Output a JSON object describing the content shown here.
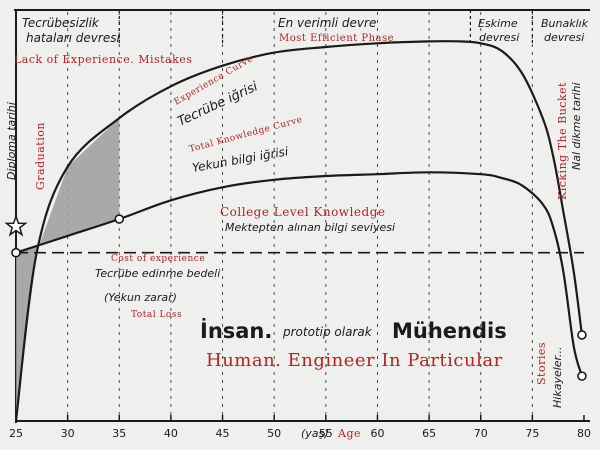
{
  "colors": {
    "background": "#efefed",
    "ink": "#1a1a1a",
    "annotation_red": "#b52323",
    "loss_fill": "#9c9c9c"
  },
  "chart_data": {
    "type": "line",
    "x_axis": {
      "range": [
        25,
        80
      ],
      "ticks": [
        25,
        30,
        35,
        40,
        45,
        50,
        55,
        60,
        65,
        70,
        75,
        80
      ],
      "label_tr": "(yaş)",
      "label_en": "Age"
    },
    "y_axis": {
      "range": [
        0,
        100
      ],
      "ticks": [],
      "label": ""
    },
    "grid": "vertical-dashed",
    "series": [
      {
        "name": "Tecrübe iğrisi",
        "name_en": "Experience Curve",
        "x": [
          25,
          27,
          30,
          35,
          40,
          45,
          50,
          55,
          60,
          65,
          68,
          70,
          72,
          74,
          76,
          77,
          78,
          79,
          79.8
        ],
        "y": [
          0,
          45,
          68,
          81,
          89.5,
          95,
          98.5,
          100,
          101,
          101.5,
          101.5,
          101,
          99,
          93,
          81,
          71,
          56,
          40,
          23
        ]
      },
      {
        "name": "Yekun bilgi iğrisi",
        "name_en": "Total Knowledge Curve",
        "x": [
          25,
          30,
          35,
          40,
          45,
          50,
          55,
          60,
          65,
          70,
          72,
          74,
          76,
          77,
          78,
          79,
          79.8
        ],
        "y": [
          45,
          49.5,
          54,
          59,
          62.5,
          64.5,
          65.5,
          66,
          66.5,
          66,
          65,
          63,
          58,
          52,
          40,
          20,
          12
        ]
      },
      {
        "name": "Mektepten alınan bilgi seviyesi",
        "name_en": "College Level Knowledge",
        "x": [
          25,
          80
        ],
        "y": [
          45,
          45
        ]
      }
    ],
    "shaded_region": {
      "name": "Tecrübe edinme bedeli",
      "name_en": "Cost of experience",
      "sub_label": "(Yekun zarar)",
      "sub_label_en": "Total Loss",
      "x_from": 25,
      "x_to": 35
    },
    "markers": [
      {
        "x": 25,
        "y": 45
      },
      {
        "x": 35,
        "y": 54
      },
      {
        "x": 79.8,
        "y": 23
      },
      {
        "x": 79.8,
        "y": 12
      }
    ],
    "star_marker": {
      "x": 25,
      "y": 52
    },
    "phases": [
      {
        "x_from": 25,
        "x_to": 35,
        "label": "Tecrübesizlik hataları devresi",
        "label_en": "Lack of Experience. Mistakes"
      },
      {
        "x_from": 45,
        "x_to": 69,
        "label": "En verimli devre",
        "label_en": "Most Efficient Phase"
      },
      {
        "x_from": 69,
        "x_to": 75,
        "label": "Eskime devresi",
        "label_en": ""
      },
      {
        "x_from": 75,
        "x_to": 80,
        "label": "Bunaklık devresi",
        "label_en": ""
      }
    ],
    "phase_separators_x": [
      35,
      45,
      69,
      75
    ],
    "annotations": {
      "graduation": {
        "label": "Diploma tarihi",
        "label_en": "Graduation"
      },
      "kicking_bucket": {
        "label": "Nal dikme tarihi",
        "label_en": "Kicking The Bucket"
      },
      "stories": {
        "label": "Hikayeler...",
        "label_en": "Stories"
      },
      "main_title": {
        "word1": "İnsan.",
        "middle": "prototip olarak",
        "word2": "Mühendis"
      },
      "main_title_en": "Human. Engineer In Particular"
    }
  }
}
